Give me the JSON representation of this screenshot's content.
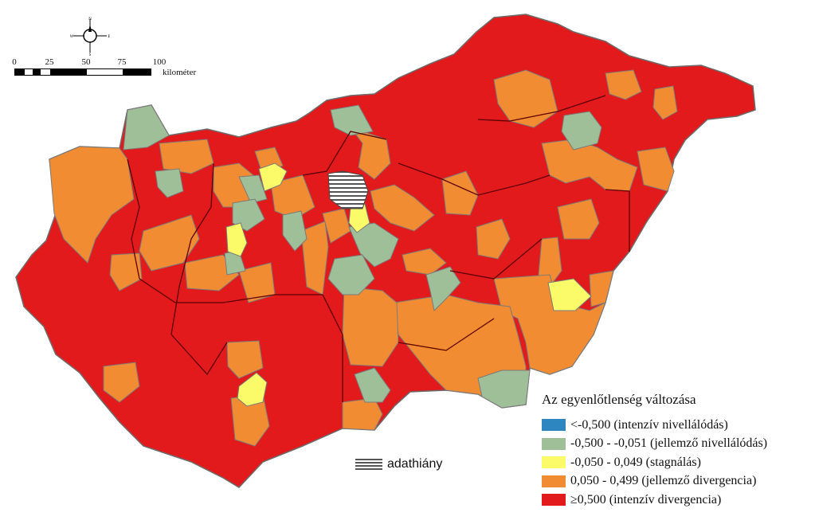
{
  "map": {
    "colors": {
      "intensive_levelling": "#2e86c1",
      "characteristic_levelling": "#9fbf98",
      "stagnation": "#fbfb6a",
      "characteristic_divergence": "#f28c32",
      "intensive_divergence": "#e31a1c",
      "border": "#6b6b6b",
      "county_border": "#5a0000"
    }
  },
  "scale": {
    "ticks": [
      "0",
      "25",
      "50",
      "75",
      "100"
    ],
    "unit": "kilométer"
  },
  "compass": {
    "north": "N",
    "south": "S",
    "east": "E",
    "west": "W"
  },
  "legend": {
    "title": "Az egyenlőtlenség változása",
    "items": [
      {
        "label": "<-0,500 (intenzív nivellálódás)",
        "color": "#2e86c1"
      },
      {
        "label": "-0,500 - -0,051 (jellemző nivellálódás)",
        "color": "#9fbf98"
      },
      {
        "label": "-0,050 - 0,049 (stagnálás)",
        "color": "#fbfb6a"
      },
      {
        "label": "0,050 - 0,499 (jellemző divergencia)",
        "color": "#f28c32"
      },
      {
        "label": "≥0,500 (intenzív divergencia)",
        "color": "#e31a1c"
      }
    ]
  },
  "nodata": {
    "label": "adathiány"
  }
}
